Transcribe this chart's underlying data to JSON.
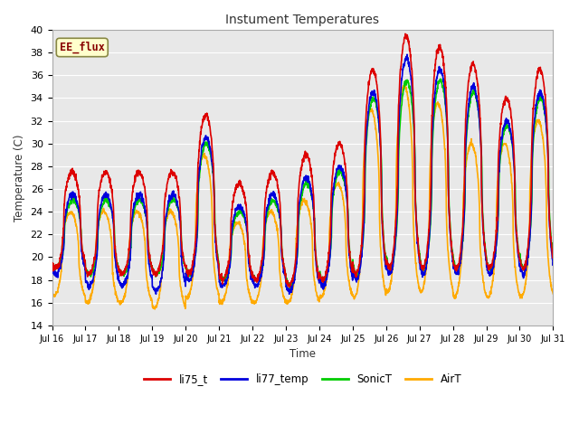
{
  "title": "Instument Temperatures",
  "xlabel": "Time",
  "ylabel": "Temperature (C)",
  "ylim": [
    14,
    40
  ],
  "xlim": [
    0,
    15
  ],
  "fig_bg": "#ffffff",
  "plot_bg": "#e8e8e8",
  "grid_color": "#ffffff",
  "annotation_text": "EE_flux",
  "annotation_color": "#880000",
  "annotation_bg": "#ffffcc",
  "annotation_border": "#888844",
  "xtick_labels": [
    "Jul 16",
    "Jul 17",
    "Jul 18",
    "Jul 19",
    "Jul 20",
    "Jul 21",
    "Jul 22",
    "Jul 23",
    "Jul 24",
    "Jul 25",
    "Jul 26",
    "Jul 27",
    "Jul 28",
    "Jul 29",
    "Jul 30",
    "Jul 31"
  ],
  "series": {
    "li75_t": {
      "color": "#dd0000",
      "lw": 1.2
    },
    "li77_temp": {
      "color": "#0000dd",
      "lw": 1.2
    },
    "SonicT": {
      "color": "#00cc00",
      "lw": 1.2
    },
    "AirT": {
      "color": "#ffaa00",
      "lw": 1.2
    }
  },
  "legend_labels": [
    "li75_t",
    "li77_temp",
    "SonicT",
    "AirT"
  ],
  "legend_colors": [
    "#dd0000",
    "#0000dd",
    "#00cc00",
    "#ffaa00"
  ]
}
